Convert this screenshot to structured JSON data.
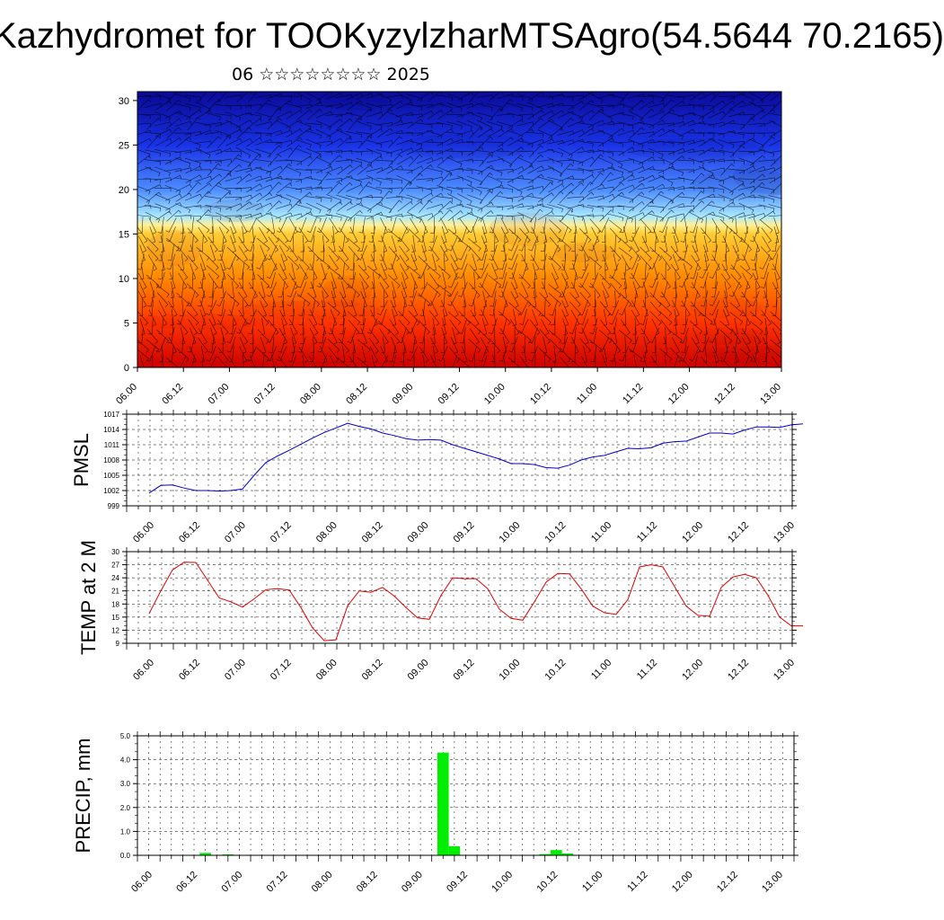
{
  "title": "Kazhydromet for TOOKyzylzharMTSAgro(54.5644 70.2165)",
  "subtitle": "06 ☆☆☆☆☆☆☆☆ 2025",
  "time_labels": [
    "06.00",
    "06.12",
    "07.00",
    "07.12",
    "08.00",
    "08.12",
    "09.00",
    "09.12",
    "10.00",
    "10.12",
    "11.00",
    "11.12",
    "12.00",
    "12.12",
    "13.00"
  ],
  "chart_data": [
    {
      "type": "heatmap",
      "title": "",
      "x": [
        "06.00",
        "06.12",
        "07.00",
        "07.12",
        "08.00",
        "08.12",
        "09.00",
        "09.12",
        "10.00",
        "10.12",
        "11.00",
        "11.12",
        "12.00",
        "12.12",
        "13.00"
      ],
      "ylim": [
        0,
        31
      ],
      "yticks": [
        0,
        5,
        10,
        15,
        20,
        25,
        30
      ],
      "colormap": [
        "#cc0000",
        "#ff3300",
        "#ff8800",
        "#ffcc33",
        "#fff099",
        "#a8e8ff",
        "#4d8cff",
        "#1a33e6",
        "#0a0a99"
      ],
      "levels_description_y": [
        0,
        5,
        10,
        15,
        16,
        17,
        20,
        25,
        31
      ],
      "overlay": "wind barbs"
    },
    {
      "type": "line",
      "ylabel": "PMSL",
      "ylim": [
        999,
        1017
      ],
      "yticks": [
        999,
        1002,
        1005,
        1008,
        1011,
        1014,
        1017
      ],
      "color": "#0000cc",
      "x": [
        0,
        1,
        2,
        3,
        4,
        5,
        6,
        7,
        8,
        9,
        10,
        11,
        12,
        13,
        14,
        15,
        16,
        17,
        18,
        19,
        20,
        21,
        22,
        23,
        24,
        25,
        26,
        27,
        28,
        29,
        30,
        31,
        32,
        33,
        34,
        35,
        36,
        37,
        38,
        39,
        40,
        41,
        42,
        43,
        44,
        45,
        46,
        47,
        48,
        49,
        50,
        51,
        52,
        53,
        54,
        55,
        56
      ],
      "values": [
        1001.5,
        1003.0,
        1003.1,
        1002.5,
        1002.0,
        1002.0,
        1001.9,
        1002.0,
        1002.3,
        1005.0,
        1007.5,
        1008.8,
        1009.9,
        1011.1,
        1012.3,
        1013.4,
        1014.3,
        1015.2,
        1014.6,
        1014.1,
        1013.3,
        1012.8,
        1012.2,
        1011.9,
        1012.0,
        1011.9,
        1011.0,
        1010.3,
        1009.6,
        1008.9,
        1008.2,
        1007.3,
        1007.3,
        1007.1,
        1006.5,
        1006.4,
        1007.0,
        1008.0,
        1008.6,
        1008.9,
        1009.6,
        1010.3,
        1010.2,
        1010.4,
        1011.3,
        1011.6,
        1011.7,
        1012.5,
        1013.3,
        1013.3,
        1013.1,
        1013.9,
        1014.5,
        1014.5,
        1014.4,
        1014.9,
        1015.1
      ]
    },
    {
      "type": "line",
      "ylabel": "TEMP at 2 M",
      "ylim": [
        9,
        30
      ],
      "yticks": [
        9,
        12,
        15,
        18,
        21,
        24,
        27,
        30
      ],
      "color": "#dd0000",
      "x": [
        0,
        1,
        2,
        3,
        4,
        5,
        6,
        7,
        8,
        9,
        10,
        11,
        12,
        13,
        14,
        15,
        16,
        17,
        18,
        19,
        20,
        21,
        22,
        23,
        24,
        25,
        26,
        27,
        28,
        29,
        30,
        31,
        32,
        33,
        34,
        35,
        36,
        37,
        38,
        39,
        40,
        41,
        42,
        43,
        44,
        45,
        46,
        47,
        48,
        49,
        50,
        51,
        52,
        53,
        54,
        55,
        56
      ],
      "values": [
        15.8,
        21.0,
        25.8,
        27.6,
        27.5,
        23.5,
        19.4,
        18.5,
        17.3,
        19.2,
        21.3,
        21.5,
        21.2,
        17.2,
        12.5,
        9.6,
        9.8,
        17.6,
        21.0,
        20.7,
        21.8,
        19.8,
        17.2,
        14.8,
        14.5,
        20.0,
        24.0,
        23.8,
        23.8,
        21.5,
        16.8,
        14.7,
        14.3,
        18.5,
        23.0,
        25.0,
        24.9,
        21.5,
        17.5,
        16.0,
        15.6,
        19.0,
        26.5,
        27.0,
        26.5,
        22.0,
        17.5,
        15.4,
        15.2,
        21.8,
        24.2,
        24.8,
        24.0,
        20.0,
        15.0,
        13.0,
        13.0
      ]
    },
    {
      "type": "bar",
      "ylabel": "PRECIP, mm",
      "ylim": [
        0,
        5
      ],
      "yticks": [
        "0.0",
        "1.0",
        "2.0",
        "3.0",
        "4.0",
        "5.0"
      ],
      "color": "#00ee00",
      "x": [
        6,
        8,
        27,
        28,
        36,
        37,
        38
      ],
      "values": [
        0.1,
        0.04,
        4.3,
        0.38,
        0.05,
        0.22,
        0.08
      ]
    }
  ]
}
